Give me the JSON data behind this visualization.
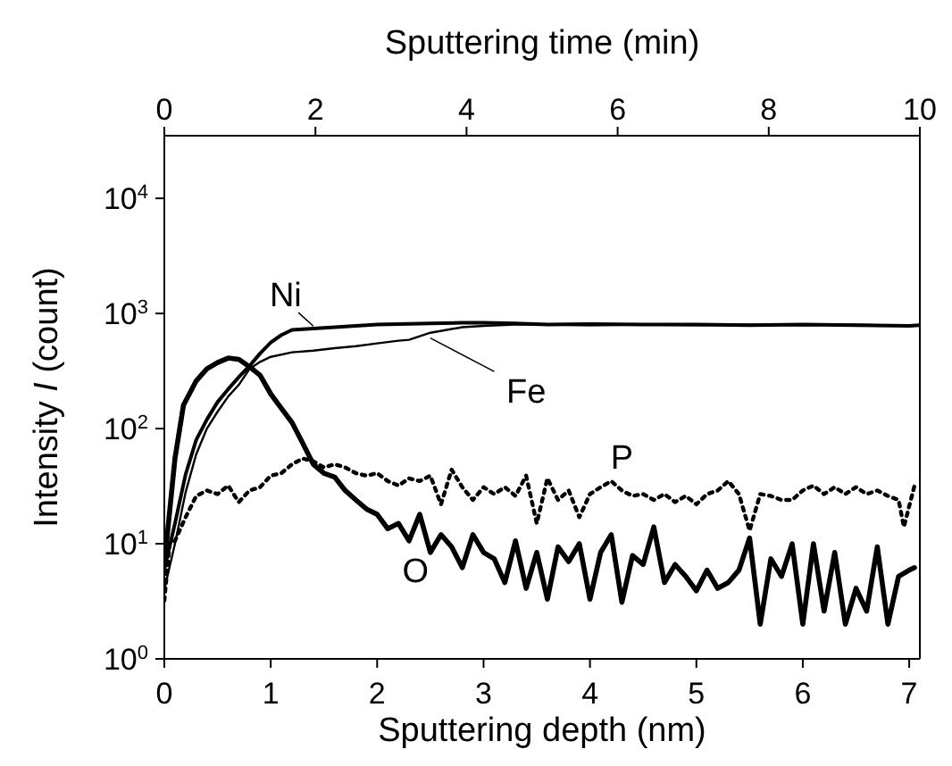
{
  "chart_data": {
    "type": "line",
    "xlabel": "Sputtering depth (nm)",
    "x2label": "Sputtering time (min)",
    "ylabel": "Intensity I (count)",
    "log": "y",
    "grid": false,
    "xlim": [
      0,
      7.1
    ],
    "xticks": [
      0,
      1,
      2,
      3,
      4,
      5,
      6,
      7
    ],
    "x2lim": [
      0,
      10
    ],
    "x2ticks": [
      0,
      2,
      4,
      6,
      8,
      10
    ],
    "ylim": [
      1,
      35000
    ],
    "yticks": [
      {
        "value": 1,
        "label": "10$^{0}$"
      },
      {
        "value": 10,
        "label": "10$^{1}$"
      },
      {
        "value": 100,
        "label": "10$^{2}$"
      },
      {
        "value": 1000,
        "label": "10$^{3}$"
      },
      {
        "value": 10000,
        "label": "10$^{4}$"
      }
    ],
    "series": [
      {
        "name": "Ni",
        "color": "#000000",
        "line_style": "solid",
        "x": [
          0,
          0.1,
          0.2,
          0.3,
          0.4,
          0.5,
          0.6,
          0.7,
          0.8,
          0.9,
          1.0,
          1.1,
          1.2,
          1.4,
          1.6,
          1.8,
          2.0,
          2.2,
          2.5,
          2.8,
          3.0,
          3.3,
          3.6,
          4.0,
          4.5,
          5.0,
          5.5,
          6.0,
          6.5,
          7.0,
          7.1
        ],
        "values": [
          6,
          15,
          40,
          80,
          120,
          170,
          220,
          280,
          350,
          450,
          560,
          650,
          720,
          740,
          760,
          780,
          800,
          810,
          820,
          830,
          830,
          820,
          800,
          810,
          800,
          800,
          790,
          800,
          790,
          780,
          790
        ]
      },
      {
        "name": "Fe",
        "color": "#000000",
        "line_style": "solid",
        "x": [
          0,
          0.1,
          0.2,
          0.3,
          0.4,
          0.5,
          0.6,
          0.7,
          0.8,
          0.9,
          1.0,
          1.2,
          1.4,
          1.6,
          1.8,
          2.0,
          2.2,
          2.3,
          2.5,
          2.8,
          3.0,
          3.3,
          3.6,
          4.0,
          4.5,
          5.0,
          5.5,
          6.0,
          6.5,
          7.0,
          7.1
        ],
        "values": [
          4,
          10,
          28,
          60,
          100,
          140,
          190,
          240,
          330,
          380,
          420,
          460,
          475,
          500,
          520,
          550,
          580,
          590,
          680,
          760,
          780,
          800,
          800,
          790,
          800,
          790,
          800,
          790,
          800,
          780,
          790
        ]
      },
      {
        "name": "P",
        "color": "#000000",
        "line_style": "dotted",
        "x": [
          0,
          0.05,
          0.1,
          0.2,
          0.3,
          0.4,
          0.5,
          0.6,
          0.7,
          0.8,
          0.9,
          1.0,
          1.1,
          1.2,
          1.3,
          1.4,
          1.5,
          1.6,
          1.7,
          1.8,
          1.9,
          2.0,
          2.1,
          2.2,
          2.3,
          2.4,
          2.5,
          2.6,
          2.7,
          2.8,
          2.9,
          3.0,
          3.1,
          3.2,
          3.3,
          3.4,
          3.5,
          3.6,
          3.7,
          3.8,
          3.9,
          4.0,
          4.1,
          4.2,
          4.3,
          4.4,
          4.5,
          4.6,
          4.7,
          4.8,
          4.9,
          5.0,
          5.1,
          5.2,
          5.3,
          5.4,
          5.5,
          5.6,
          5.7,
          5.8,
          5.9,
          6.0,
          6.1,
          6.2,
          6.3,
          6.4,
          6.5,
          6.6,
          6.7,
          6.8,
          6.9,
          6.95,
          7.05
        ],
        "values": [
          3.2,
          10,
          10.6,
          17,
          26,
          29,
          27,
          32,
          23,
          29,
          31,
          39,
          41,
          49,
          55,
          52,
          46,
          49,
          46,
          41,
          39,
          41,
          35,
          32,
          37,
          35,
          39,
          22,
          44,
          31,
          24,
          31,
          27,
          31,
          26,
          39,
          15,
          37,
          24,
          29,
          17,
          27,
          31,
          35,
          29,
          26,
          27,
          24,
          27,
          23,
          26,
          22,
          27,
          29,
          35,
          27,
          13,
          27,
          26,
          24,
          24,
          29,
          32,
          27,
          31,
          27,
          31,
          27,
          29,
          26,
          24,
          14,
          32
        ]
      },
      {
        "name": "O",
        "color": "#000000",
        "line_style": "solid",
        "x": [
          0,
          0.1,
          0.18,
          0.3,
          0.4,
          0.5,
          0.6,
          0.7,
          0.8,
          0.9,
          1.0,
          1.1,
          1.2,
          1.3,
          1.4,
          1.5,
          1.6,
          1.7,
          1.8,
          1.9,
          2.0,
          2.1,
          2.2,
          2.3,
          2.4,
          2.5,
          2.6,
          2.7,
          2.8,
          2.9,
          3.0,
          3.1,
          3.2,
          3.3,
          3.4,
          3.5,
          3.6,
          3.7,
          3.8,
          3.9,
          4.0,
          4.1,
          4.2,
          4.3,
          4.4,
          4.5,
          4.6,
          4.7,
          4.8,
          4.9,
          5.0,
          5.1,
          5.2,
          5.3,
          5.4,
          5.5,
          5.6,
          5.7,
          5.8,
          5.9,
          6.0,
          6.1,
          6.2,
          6.3,
          6.4,
          6.5,
          6.6,
          6.7,
          6.8,
          6.9,
          7.0,
          7.05
        ],
        "values": [
          6.6,
          55,
          160,
          260,
          330,
          375,
          410,
          400,
          345,
          290,
          200,
          150,
          113,
          75,
          49,
          41,
          38,
          29,
          24,
          20,
          18,
          13.5,
          15,
          10.6,
          18,
          8.4,
          12,
          9.4,
          6.2,
          12,
          8.4,
          7.4,
          4.6,
          10.6,
          4.1,
          8.4,
          3.3,
          9.4,
          7,
          10,
          3.3,
          8.4,
          12,
          3.1,
          7.9,
          6.6,
          14,
          4.6,
          6.6,
          5.2,
          3.9,
          5.9,
          4.1,
          4.6,
          5.9,
          11.2,
          2,
          7.4,
          5.2,
          10,
          2,
          10,
          2.6,
          8.4,
          2,
          4.1,
          2.6,
          9.4,
          2,
          5.2,
          5.9,
          6.2
        ]
      }
    ]
  }
}
